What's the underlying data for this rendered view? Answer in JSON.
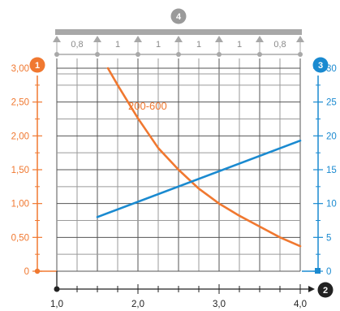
{
  "colors": {
    "left_axis": "#f07830",
    "right_axis": "#1a8ad0",
    "bottom_axis": "#222222",
    "top_badge": "#9a9a9a",
    "grid": "#9a9a9a",
    "grid_bold": "#555555",
    "beam": "#a8a8a8"
  },
  "badges": {
    "top": "4",
    "left": "1",
    "right": "3",
    "bottom": "2"
  },
  "beam": {
    "span_labels": [
      "0,8",
      "1",
      "1",
      "1",
      "1",
      "0,8"
    ],
    "supports": [
      1.0,
      1.5,
      2.0,
      2.5,
      3.0,
      3.5,
      4.0
    ]
  },
  "chart_data": {
    "type": "line",
    "x": {
      "range": [
        1.0,
        4.0
      ],
      "ticks": [
        1.0,
        2.0,
        3.0,
        4.0
      ],
      "tick_labels": [
        "1,0",
        "2,0",
        "3,0",
        "4,0"
      ]
    },
    "y_left": {
      "range": [
        0,
        3.0
      ],
      "ticks": [
        0,
        0.5,
        1.0,
        1.5,
        2.0,
        2.5,
        3.0
      ],
      "tick_labels": [
        "0",
        "0,50",
        "1,00",
        "1,50",
        "2,00",
        "2,50",
        "3,00"
      ]
    },
    "y_right": {
      "range": [
        0,
        30
      ],
      "ticks": [
        0,
        5,
        10,
        15,
        20,
        25,
        30
      ],
      "tick_labels": [
        "0",
        "5",
        "10",
        "15",
        "20",
        "25",
        "30"
      ]
    },
    "series": [
      {
        "name": "200-600",
        "axis": "left",
        "color": "#f07830",
        "x": [
          1.63,
          1.75,
          2.0,
          2.25,
          2.5,
          2.75,
          3.0,
          3.25,
          3.5,
          3.75,
          4.0
        ],
        "y": [
          3.0,
          2.75,
          2.26,
          1.82,
          1.5,
          1.22,
          1.0,
          0.82,
          0.66,
          0.5,
          0.37
        ]
      },
      {
        "axis": "right",
        "color": "#1a8ad0",
        "x": [
          1.5,
          4.0
        ],
        "y": [
          8,
          19.3
        ]
      }
    ],
    "grid": true
  }
}
